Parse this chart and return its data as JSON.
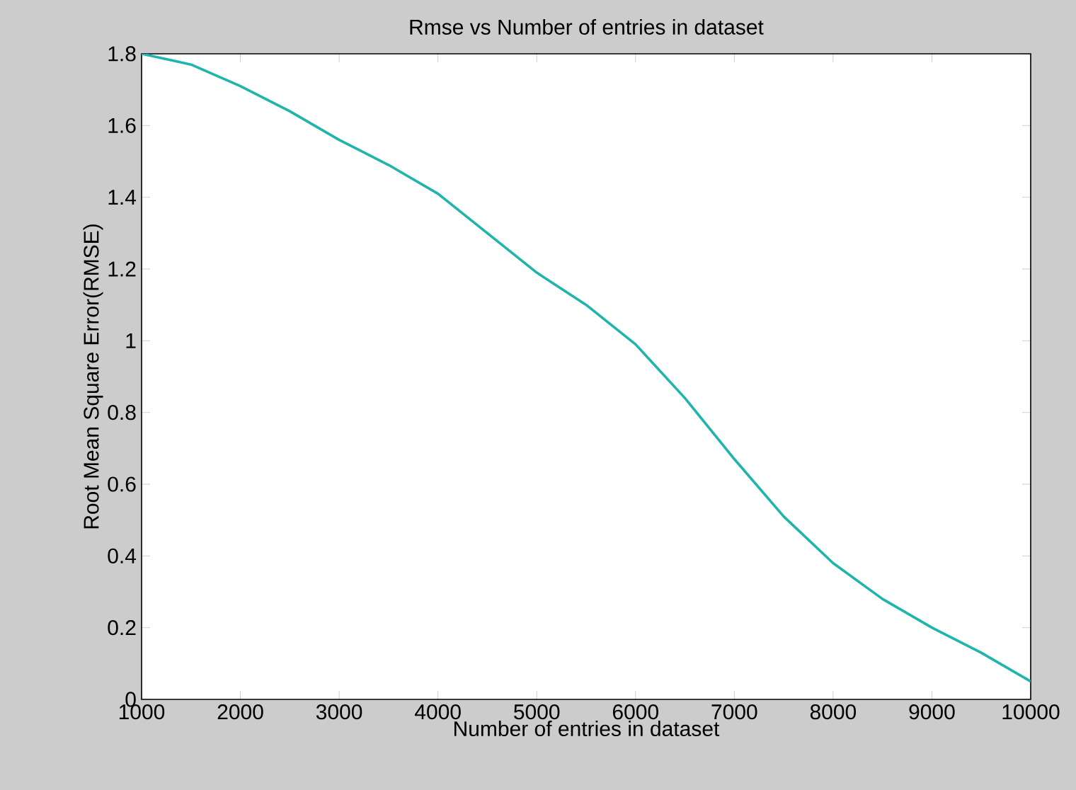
{
  "chart_data": {
    "type": "line",
    "title": "Rmse vs Number of entries in dataset",
    "xlabel": "Number of entries in dataset",
    "ylabel": "Root Mean Square Error(RMSE)",
    "x": [
      1000,
      1500,
      2000,
      2500,
      3000,
      3500,
      4000,
      4500,
      5000,
      5500,
      6000,
      6500,
      7000,
      7500,
      8000,
      8500,
      9000,
      9500,
      10000
    ],
    "series": [
      {
        "color": "#1fb5ad",
        "values": [
          1.8,
          1.77,
          1.71,
          1.64,
          1.56,
          1.49,
          1.41,
          1.3,
          1.19,
          1.1,
          0.99,
          0.84,
          0.67,
          0.51,
          0.38,
          0.28,
          0.2,
          0.13,
          0.05
        ]
      }
    ],
    "xlim": [
      1000,
      10000
    ],
    "ylim": [
      0,
      1.8
    ],
    "xticks": [
      1000,
      2000,
      3000,
      4000,
      5000,
      6000,
      7000,
      8000,
      9000,
      10000
    ],
    "yticks": [
      0,
      0.2,
      0.4,
      0.6,
      0.8,
      1,
      1.2,
      1.4,
      1.6,
      1.8
    ],
    "grid": false,
    "marker": "none",
    "line_style": "solid"
  }
}
